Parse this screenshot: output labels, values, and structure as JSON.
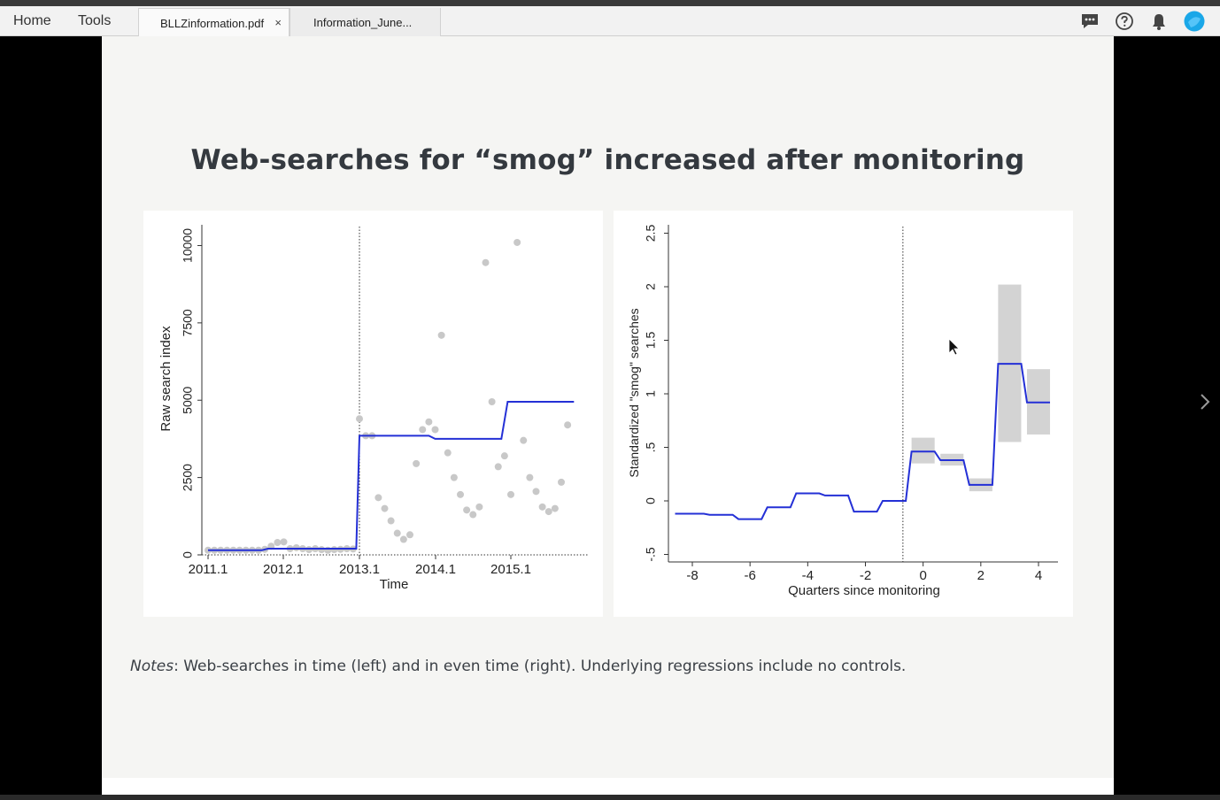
{
  "app": {
    "nav": [
      "Home",
      "Tools"
    ],
    "tabs": [
      {
        "label": "BLLZinformation.pdf",
        "close": "×",
        "active": true
      },
      {
        "label": "Information_June...",
        "active": false
      }
    ],
    "icons": [
      "comment-icon",
      "help-icon",
      "bell-icon",
      "account-avatar-icon"
    ],
    "avatar_color": "#1aa7e8"
  },
  "slide": {
    "title": "Web-searches for “smog” increased after monitoring",
    "notes_label": "Notes",
    "notes_text": ": Web-searches in time (left) and in even time (right). Underlying regressions include no controls."
  },
  "chart_data": [
    {
      "type": "scatter",
      "xlabel": "Time",
      "ylabel": "Raw search index",
      "xticks": [
        "2011.1",
        "2012.1",
        "2013.1",
        "2014.1",
        "2015.1"
      ],
      "yticks": [
        "0",
        "2500",
        "5000",
        "7500",
        "10000"
      ],
      "ylim": [
        0,
        10500
      ],
      "xlim": [
        0,
        60
      ],
      "vline_x": 24,
      "colors": {
        "points": "#c8c8c8",
        "line": "#2430d6"
      },
      "points": [
        {
          "x": 0,
          "y": 150
        },
        {
          "x": 1,
          "y": 150
        },
        {
          "x": 2,
          "y": 150
        },
        {
          "x": 3,
          "y": 150
        },
        {
          "x": 4,
          "y": 150
        },
        {
          "x": 5,
          "y": 150
        },
        {
          "x": 6,
          "y": 150
        },
        {
          "x": 7,
          "y": 150
        },
        {
          "x": 8,
          "y": 150
        },
        {
          "x": 9,
          "y": 180
        },
        {
          "x": 10,
          "y": 280
        },
        {
          "x": 11,
          "y": 400
        },
        {
          "x": 12,
          "y": 420
        },
        {
          "x": 13,
          "y": 200
        },
        {
          "x": 14,
          "y": 230
        },
        {
          "x": 15,
          "y": 200
        },
        {
          "x": 16,
          "y": 170
        },
        {
          "x": 17,
          "y": 200
        },
        {
          "x": 18,
          "y": 170
        },
        {
          "x": 19,
          "y": 150
        },
        {
          "x": 20,
          "y": 170
        },
        {
          "x": 21,
          "y": 180
        },
        {
          "x": 22,
          "y": 200
        },
        {
          "x": 23,
          "y": 190
        },
        {
          "x": 24,
          "y": 4400
        },
        {
          "x": 25,
          "y": 3850
        },
        {
          "x": 26,
          "y": 3850
        },
        {
          "x": 27,
          "y": 1850
        },
        {
          "x": 28,
          "y": 1500
        },
        {
          "x": 29,
          "y": 1100
        },
        {
          "x": 30,
          "y": 700
        },
        {
          "x": 31,
          "y": 500
        },
        {
          "x": 32,
          "y": 650
        },
        {
          "x": 33,
          "y": 2950
        },
        {
          "x": 34,
          "y": 4050
        },
        {
          "x": 35,
          "y": 4300
        },
        {
          "x": 36,
          "y": 4050
        },
        {
          "x": 37,
          "y": 7100
        },
        {
          "x": 38,
          "y": 3300
        },
        {
          "x": 39,
          "y": 2500
        },
        {
          "x": 40,
          "y": 1950
        },
        {
          "x": 41,
          "y": 1450
        },
        {
          "x": 42,
          "y": 1300
        },
        {
          "x": 43,
          "y": 1550
        },
        {
          "x": 44,
          "y": 9450
        },
        {
          "x": 45,
          "y": 4950
        },
        {
          "x": 46,
          "y": 2850
        },
        {
          "x": 47,
          "y": 3200
        },
        {
          "x": 48,
          "y": 1950
        },
        {
          "x": 49,
          "y": 10100
        },
        {
          "x": 50,
          "y": 3700
        },
        {
          "x": 51,
          "y": 2500
        },
        {
          "x": 52,
          "y": 2050
        },
        {
          "x": 53,
          "y": 1550
        },
        {
          "x": 54,
          "y": 1400
        },
        {
          "x": 55,
          "y": 1500
        },
        {
          "x": 56,
          "y": 2350
        },
        {
          "x": 57,
          "y": 4200
        }
      ],
      "fitted_line": [
        {
          "x": 0,
          "y": 150
        },
        {
          "x": 8.5,
          "y": 150
        },
        {
          "x": 9.5,
          "y": 200
        },
        {
          "x": 23.5,
          "y": 200
        },
        {
          "x": 24,
          "y": 3850
        },
        {
          "x": 35,
          "y": 3850
        },
        {
          "x": 36,
          "y": 3750
        },
        {
          "x": 46.5,
          "y": 3750
        },
        {
          "x": 47.5,
          "y": 4950
        },
        {
          "x": 58,
          "y": 4950
        }
      ]
    },
    {
      "type": "line",
      "xlabel": "Quarters since monitoring",
      "ylabel": "Standardized \"smog\" searches",
      "xticks": [
        "-8",
        "-6",
        "-4",
        "-2",
        "0",
        "2",
        "4"
      ],
      "yticks": [
        "-.5",
        "0",
        ".5",
        "1",
        "1.5",
        "2",
        "2.5"
      ],
      "xlim": [
        -9,
        4.7
      ],
      "ylim": [
        -0.57,
        2.55
      ],
      "vline_x": -0.7,
      "colors": {
        "line": "#2430d6",
        "band": "#d3d3d3"
      },
      "steps": [
        {
          "x0": -8.6,
          "x1": -7.6,
          "y": -0.12
        },
        {
          "x0": -7.4,
          "x1": -6.6,
          "y": -0.13
        },
        {
          "x0": -6.4,
          "x1": -5.6,
          "y": -0.17
        },
        {
          "x0": -5.4,
          "x1": -4.6,
          "y": -0.06
        },
        {
          "x0": -4.4,
          "x1": -3.6,
          "y": 0.07
        },
        {
          "x0": -3.4,
          "x1": -2.6,
          "y": 0.05
        },
        {
          "x0": -2.4,
          "x1": -1.6,
          "y": -0.1
        },
        {
          "x0": -1.4,
          "x1": -0.6,
          "y": 0.0
        },
        {
          "x0": -0.4,
          "x1": 0.4,
          "y": 0.46,
          "lo": 0.35,
          "hi": 0.59
        },
        {
          "x0": 0.6,
          "x1": 1.4,
          "y": 0.38,
          "lo": 0.33,
          "hi": 0.44
        },
        {
          "x0": 1.6,
          "x1": 2.4,
          "y": 0.15,
          "lo": 0.09,
          "hi": 0.21
        },
        {
          "x0": 2.6,
          "x1": 3.4,
          "y": 1.28,
          "lo": 0.55,
          "hi": 2.02
        },
        {
          "x0": 3.6,
          "x1": 4.4,
          "y": 0.92,
          "lo": 0.62,
          "hi": 1.23
        }
      ]
    }
  ]
}
